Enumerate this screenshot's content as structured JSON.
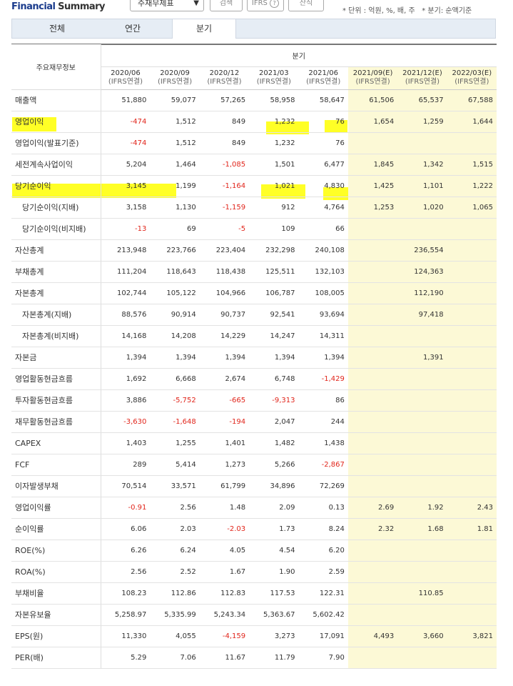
{
  "header": {
    "title_prefix": "Financial",
    "title_suffix": "Summary",
    "select_value": "주재무제표",
    "search_button": "검색",
    "ifrs_button": "IFRS",
    "help_icon": "?",
    "second_button": "산식",
    "unit_text": "* 단위 : 억원, %, 배, 주",
    "quarter_text": "* 분기: 순액기준"
  },
  "tabs": [
    {
      "label": "전체"
    },
    {
      "label": "연간"
    },
    {
      "label": "분기"
    }
  ],
  "table": {
    "corner_label": "주요재무정보",
    "group_label": "분기",
    "columns": [
      {
        "period": "2020/06",
        "basis": "(IFRS연결)"
      },
      {
        "period": "2020/09",
        "basis": "(IFRS연결)"
      },
      {
        "period": "2020/12",
        "basis": "(IFRS연결)"
      },
      {
        "period": "2021/03",
        "basis": "(IFRS연결)"
      },
      {
        "period": "2021/06",
        "basis": "(IFRS연결)"
      },
      {
        "period": "2021/09(E)",
        "basis": "(IFRS연결)"
      },
      {
        "period": "2021/12(E)",
        "basis": "(IFRS연결)"
      },
      {
        "period": "2022/03(E)",
        "basis": "(IFRS연결)"
      }
    ],
    "rows": [
      {
        "label": "매출액",
        "values": [
          "51,880",
          "59,077",
          "57,265",
          "58,958",
          "58,647",
          "61,506",
          "65,537",
          "67,588"
        ]
      },
      {
        "label": "영업이익",
        "values": [
          "-474",
          "1,512",
          "849",
          "1,232",
          "76",
          "1,654",
          "1,259",
          "1,644"
        ]
      },
      {
        "label": "영업이익(발표기준)",
        "values": [
          "-474",
          "1,512",
          "849",
          "1,232",
          "76",
          "",
          "",
          ""
        ]
      },
      {
        "label": "세전계속사업이익",
        "values": [
          "5,204",
          "1,464",
          "-1,085",
          "1,501",
          "6,477",
          "1,845",
          "1,342",
          "1,515"
        ]
      },
      {
        "label": "당기순이익",
        "values": [
          "3,145",
          "1,199",
          "-1,164",
          "1,021",
          "4,830",
          "1,425",
          "1,101",
          "1,222"
        ]
      },
      {
        "label": "당기순이익(지배)",
        "values": [
          "3,158",
          "1,130",
          "-1,159",
          "912",
          "4,764",
          "1,253",
          "1,020",
          "1,065"
        ]
      },
      {
        "label": "당기순이익(비지배)",
        "values": [
          "-13",
          "69",
          "-5",
          "109",
          "66",
          "",
          "",
          ""
        ]
      },
      {
        "label": "자산총계",
        "values": [
          "213,948",
          "223,766",
          "223,404",
          "232,298",
          "240,108",
          "",
          "236,554",
          ""
        ]
      },
      {
        "label": "부채총계",
        "values": [
          "111,204",
          "118,643",
          "118,438",
          "125,511",
          "132,103",
          "",
          "124,363",
          ""
        ]
      },
      {
        "label": "자본총계",
        "values": [
          "102,744",
          "105,122",
          "104,966",
          "106,787",
          "108,005",
          "",
          "112,190",
          ""
        ]
      },
      {
        "label": "자본총계(지배)",
        "values": [
          "88,576",
          "90,914",
          "90,737",
          "92,541",
          "93,694",
          "",
          "97,418",
          ""
        ]
      },
      {
        "label": "자본총계(비지배)",
        "values": [
          "14,168",
          "14,208",
          "14,229",
          "14,247",
          "14,311",
          "",
          "",
          ""
        ]
      },
      {
        "label": "자본금",
        "values": [
          "1,394",
          "1,394",
          "1,394",
          "1,394",
          "1,394",
          "",
          "1,391",
          ""
        ]
      },
      {
        "label": "영업활동현금흐름",
        "values": [
          "1,692",
          "6,668",
          "2,674",
          "6,748",
          "-1,429",
          "",
          "",
          ""
        ]
      },
      {
        "label": "투자활동현금흐름",
        "values": [
          "3,886",
          "-5,752",
          "-665",
          "-9,313",
          "86",
          "",
          "",
          ""
        ]
      },
      {
        "label": "재무활동현금흐름",
        "values": [
          "-3,630",
          "-1,648",
          "-194",
          "2,047",
          "244",
          "",
          "",
          ""
        ]
      },
      {
        "label": "CAPEX",
        "values": [
          "1,403",
          "1,255",
          "1,401",
          "1,482",
          "1,438",
          "",
          "",
          ""
        ]
      },
      {
        "label": "FCF",
        "values": [
          "289",
          "5,414",
          "1,273",
          "5,266",
          "-2,867",
          "",
          "",
          ""
        ]
      },
      {
        "label": "이자발생부채",
        "values": [
          "70,514",
          "33,571",
          "61,799",
          "34,896",
          "72,269",
          "",
          "",
          ""
        ]
      },
      {
        "label": "영업이익률",
        "values": [
          "-0.91",
          "2.56",
          "1.48",
          "2.09",
          "0.13",
          "2.69",
          "1.92",
          "2.43"
        ]
      },
      {
        "label": "순이익률",
        "values": [
          "6.06",
          "2.03",
          "-2.03",
          "1.73",
          "8.24",
          "2.32",
          "1.68",
          "1.81"
        ]
      },
      {
        "label": "ROE(%)",
        "values": [
          "6.26",
          "6.24",
          "4.05",
          "4.54",
          "6.20",
          "",
          "",
          ""
        ]
      },
      {
        "label": "ROA(%)",
        "values": [
          "2.56",
          "2.52",
          "1.67",
          "1.90",
          "2.59",
          "",
          "",
          ""
        ]
      },
      {
        "label": "부채비율",
        "values": [
          "108.23",
          "112.86",
          "112.83",
          "117.53",
          "122.31",
          "",
          "110.85",
          ""
        ]
      },
      {
        "label": "자본유보율",
        "values": [
          "5,258.97",
          "5,335.99",
          "5,243.34",
          "5,363.67",
          "5,602.42",
          "",
          "",
          ""
        ]
      },
      {
        "label": "EPS(원)",
        "values": [
          "11,330",
          "4,055",
          "-4,159",
          "3,273",
          "17,091",
          "4,493",
          "3,660",
          "3,821"
        ]
      },
      {
        "label": "PER(배)",
        "values": [
          "5.29",
          "7.06",
          "11.67",
          "11.79",
          "7.90",
          "",
          "",
          ""
        ]
      }
    ]
  },
  "colors": {
    "negative": "#e1251b",
    "estimate_bg": "#fcf9d6",
    "highlight": "#ffff00",
    "title_blue": "#1a3b8c"
  }
}
